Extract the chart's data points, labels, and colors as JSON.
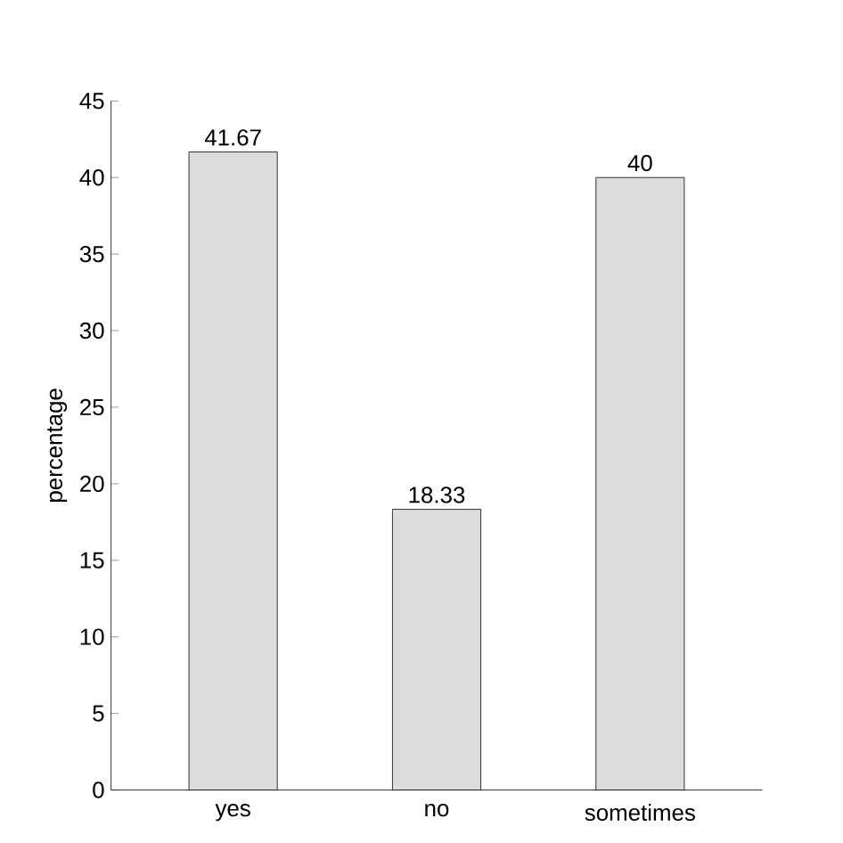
{
  "chart_data": {
    "type": "bar",
    "ylabel": "percentage",
    "categories": [
      "yes",
      "no",
      "sometimes"
    ],
    "values": [
      41.67,
      18.33,
      40
    ],
    "color": "#dcdcdc",
    "ylim": [
      0,
      45
    ],
    "yticks": [
      0,
      5,
      10,
      15,
      20,
      25,
      30,
      35,
      40,
      45
    ],
    "data_labels": true
  }
}
